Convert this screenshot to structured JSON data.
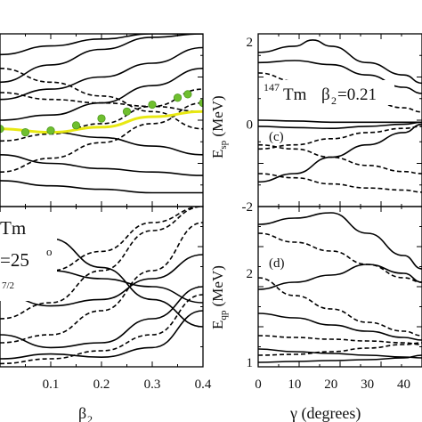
{
  "figure": {
    "annotations": {
      "nucleus_mass": "147",
      "nucleus_symbol": "Tm",
      "beta_label": "β",
      "beta_sub": "2",
      "beta_value": "=0.21",
      "panel_c": "(c)",
      "panel_d": "(d)",
      "left_tm": "Tm",
      "left_gamma": "=25",
      "left_gamma_deg": "o",
      "left_frac": "7/2"
    }
  },
  "chart_data": [
    {
      "type": "line",
      "panel": "left-top",
      "xlim": [
        0.0,
        0.4
      ],
      "series": [
        {
          "style": "solid",
          "color": "#000000",
          "x": [
            0.0,
            0.1,
            0.2,
            0.3,
            0.4
          ],
          "y": [
            0.88,
            0.93,
            0.97,
            1.0,
            1.0
          ]
        },
        {
          "style": "solid",
          "color": "#000000",
          "x": [
            0.0,
            0.1,
            0.2,
            0.3,
            0.4
          ],
          "y": [
            0.72,
            0.82,
            0.91,
            0.98,
            1.0
          ]
        },
        {
          "style": "solid",
          "color": "#000000",
          "x": [
            0.0,
            0.1,
            0.2,
            0.3,
            0.4
          ],
          "y": [
            0.62,
            0.68,
            0.75,
            0.83,
            0.92
          ]
        },
        {
          "style": "solid",
          "color": "#000000",
          "x": [
            0.0,
            0.1,
            0.2,
            0.3,
            0.4
          ],
          "y": [
            0.5,
            0.53,
            0.6,
            0.7,
            0.8
          ]
        },
        {
          "style": "solid",
          "color": "#000000",
          "x": [
            0.0,
            0.1,
            0.2,
            0.3,
            0.4
          ],
          "y": [
            0.45,
            0.43,
            0.4,
            0.35,
            0.3
          ]
        },
        {
          "style": "solid",
          "color": "#000000",
          "x": [
            0.0,
            0.1,
            0.2,
            0.3,
            0.4
          ],
          "y": [
            0.3,
            0.25,
            0.22,
            0.2,
            0.18
          ]
        },
        {
          "style": "solid",
          "color": "#000000",
          "x": [
            0.0,
            0.1,
            0.2,
            0.3,
            0.4
          ],
          "y": [
            0.15,
            0.12,
            0.1,
            0.08,
            0.08
          ]
        },
        {
          "style": "dashed",
          "color": "#000000",
          "x": [
            0.0,
            0.1,
            0.2,
            0.3,
            0.4
          ],
          "y": [
            0.8,
            0.72,
            0.64,
            0.55,
            0.45
          ]
        },
        {
          "style": "dashed",
          "color": "#000000",
          "x": [
            0.0,
            0.1,
            0.2,
            0.3,
            0.4
          ],
          "y": [
            0.66,
            0.62,
            0.6,
            0.58,
            0.55
          ]
        },
        {
          "style": "dashed",
          "color": "#000000",
          "x": [
            0.0,
            0.1,
            0.2,
            0.3,
            0.4
          ],
          "y": [
            0.38,
            0.42,
            0.48,
            0.58,
            0.68
          ]
        },
        {
          "style": "dashed",
          "color": "#000000",
          "x": [
            0.0,
            0.1,
            0.2,
            0.3,
            0.4
          ],
          "y": [
            0.2,
            0.28,
            0.37,
            0.48,
            0.6
          ]
        },
        {
          "style": "yellow",
          "color": "#e8e812",
          "x": [
            0.0,
            0.1,
            0.2,
            0.3,
            0.4
          ],
          "y": [
            0.45,
            0.43,
            0.46,
            0.52,
            0.55
          ]
        },
        {
          "style": "dots",
          "color": "#6fbf2f",
          "x": [
            0.0,
            0.05,
            0.1,
            0.15,
            0.2,
            0.25,
            0.3,
            0.35,
            0.37,
            0.4
          ],
          "y": [
            0.45,
            0.43,
            0.44,
            0.47,
            0.51,
            0.55,
            0.59,
            0.63,
            0.65,
            0.6
          ]
        }
      ]
    },
    {
      "type": "line",
      "panel": "left-bottom",
      "xlabel": "β2",
      "xlim": [
        0.0,
        0.4
      ],
      "xticks": [
        "0.1",
        "0.2",
        "0.3",
        "0.4"
      ],
      "series": [
        {
          "style": "solid",
          "color": "#000000",
          "x": [
            0.0,
            0.1,
            0.2,
            0.3,
            0.4
          ],
          "y": [
            0.92,
            0.8,
            0.62,
            0.42,
            0.25
          ]
        },
        {
          "style": "solid",
          "color": "#000000",
          "x": [
            0.0,
            0.1,
            0.2,
            0.3,
            0.4
          ],
          "y": [
            0.7,
            0.6,
            0.55,
            0.5,
            0.4
          ]
        },
        {
          "style": "solid",
          "color": "#000000",
          "x": [
            0.0,
            0.1,
            0.2,
            0.3,
            0.4
          ],
          "y": [
            0.45,
            0.38,
            0.42,
            0.55,
            0.7
          ]
        },
        {
          "style": "solid",
          "color": "#000000",
          "x": [
            0.0,
            0.1,
            0.2,
            0.3,
            0.4
          ],
          "y": [
            0.2,
            0.12,
            0.15,
            0.3,
            0.5
          ]
        },
        {
          "style": "solid",
          "color": "#000000",
          "x": [
            0.0,
            0.1,
            0.2,
            0.3,
            0.4
          ],
          "y": [
            0.05,
            0.08,
            0.06,
            0.12,
            0.35
          ]
        },
        {
          "style": "dashed",
          "color": "#000000",
          "x": [
            0.0,
            0.1,
            0.2,
            0.3,
            0.4
          ],
          "y": [
            0.3,
            0.4,
            0.6,
            0.85,
            1.0
          ]
        },
        {
          "style": "dashed",
          "color": "#000000",
          "x": [
            0.0,
            0.1,
            0.2,
            0.3,
            0.4
          ],
          "y": [
            0.55,
            0.6,
            0.72,
            0.9,
            1.0
          ]
        },
        {
          "style": "dashed",
          "color": "#000000",
          "x": [
            0.0,
            0.1,
            0.2,
            0.3,
            0.4
          ],
          "y": [
            0.15,
            0.2,
            0.35,
            0.6,
            0.9
          ]
        },
        {
          "style": "dashed",
          "color": "#000000",
          "x": [
            0.0,
            0.1,
            0.2,
            0.3,
            0.4
          ],
          "y": [
            0.02,
            0.05,
            0.1,
            0.2,
            0.45
          ]
        }
      ]
    },
    {
      "type": "line",
      "panel": "c",
      "ylabel": "Esp (MeV)",
      "ylim": [
        -2.0,
        2.2
      ],
      "yticks": [
        "-2",
        "0",
        "2"
      ],
      "xlim": [
        0,
        45
      ],
      "series": [
        {
          "style": "solid",
          "color": "#000000",
          "x": [
            0,
            10,
            15,
            20,
            30,
            40,
            45
          ],
          "y": [
            1.75,
            1.9,
            2.05,
            1.9,
            1.5,
            1.2,
            1.0
          ]
        },
        {
          "style": "solid",
          "color": "#000000",
          "x": [
            0,
            10,
            20,
            30,
            40,
            45
          ],
          "y": [
            1.5,
            1.55,
            1.45,
            1.2,
            0.9,
            0.75
          ]
        },
        {
          "style": "solid",
          "color": "#000000",
          "x": [
            0,
            10,
            20,
            30,
            40,
            45
          ],
          "y": [
            0.1,
            0.08,
            0.05,
            0.05,
            0.05,
            0.05
          ]
        },
        {
          "style": "solid",
          "color": "#000000",
          "x": [
            0,
            10,
            20,
            30,
            40,
            45
          ],
          "y": [
            -0.05,
            -0.08,
            -0.1,
            -0.05,
            0.0,
            0.05
          ]
        },
        {
          "style": "solid",
          "color": "#000000",
          "x": [
            0,
            10,
            20,
            30,
            40,
            45
          ],
          "y": [
            -1.4,
            -1.2,
            -0.8,
            -0.5,
            -0.2,
            0.0
          ]
        },
        {
          "style": "dashed",
          "color": "#000000",
          "x": [
            0,
            10,
            20,
            30,
            40,
            45
          ],
          "y": [
            -0.5,
            -0.6,
            -0.8,
            -1.0,
            -1.15,
            -1.2
          ]
        },
        {
          "style": "dashed",
          "color": "#000000",
          "x": [
            0,
            10,
            20,
            30,
            40,
            45
          ],
          "y": [
            -0.6,
            -0.5,
            -0.35,
            -0.2,
            -0.1,
            -0.05
          ]
        },
        {
          "style": "dashed",
          "color": "#000000",
          "x": [
            0,
            10,
            20,
            30,
            40,
            45
          ],
          "y": [
            -1.2,
            -1.3,
            -1.45,
            -1.55,
            -1.6,
            -1.65
          ]
        },
        {
          "style": "dashed",
          "color": "#000000",
          "x": [
            0,
            10,
            20,
            30,
            40,
            45
          ],
          "y": [
            1.25,
            1.05,
            0.85,
            0.6,
            0.4,
            0.3
          ]
        }
      ]
    },
    {
      "type": "line",
      "panel": "d",
      "xlabel": "γ (degrees)",
      "ylabel": "Eqp (MeV)",
      "xlim": [
        0,
        45
      ],
      "xticks": [
        "0",
        "10",
        "20",
        "30",
        "40"
      ],
      "ylim": [
        0.95,
        2.75
      ],
      "yticks": [
        "1",
        "2"
      ],
      "series": [
        {
          "style": "solid",
          "color": "#000000",
          "x": [
            0,
            10,
            20,
            30,
            40,
            45
          ],
          "y": [
            2.55,
            2.62,
            2.68,
            2.45,
            2.2,
            2.05
          ]
        },
        {
          "style": "solid",
          "color": "#000000",
          "x": [
            0,
            10,
            20,
            30,
            40,
            45
          ],
          "y": [
            1.82,
            1.9,
            1.98,
            2.1,
            2.0,
            1.9
          ]
        },
        {
          "style": "solid",
          "color": "#000000",
          "x": [
            0,
            10,
            20,
            30,
            40,
            45
          ],
          "y": [
            1.55,
            1.5,
            1.42,
            1.35,
            1.28,
            1.25
          ]
        },
        {
          "style": "solid",
          "color": "#000000",
          "x": [
            0,
            10,
            20,
            30,
            40,
            45
          ],
          "y": [
            1.15,
            1.12,
            1.1,
            1.08,
            1.06,
            1.05
          ]
        },
        {
          "style": "solid",
          "color": "#000000",
          "x": [
            0,
            10,
            20,
            30,
            40,
            45
          ],
          "y": [
            1.0,
            1.01,
            1.02,
            1.03,
            1.05,
            1.08
          ]
        },
        {
          "style": "dashed",
          "color": "#000000",
          "x": [
            0,
            10,
            20,
            30,
            40,
            45
          ],
          "y": [
            2.45,
            2.35,
            2.25,
            2.1,
            1.95,
            1.9
          ]
        },
        {
          "style": "dashed",
          "color": "#000000",
          "x": [
            0,
            10,
            20,
            30,
            40,
            45
          ],
          "y": [
            1.95,
            1.75,
            1.6,
            1.45,
            1.35,
            1.3
          ]
        },
        {
          "style": "dashed",
          "color": "#000000",
          "x": [
            0,
            10,
            20,
            30,
            40,
            45
          ],
          "y": [
            1.3,
            1.28,
            1.26,
            1.24,
            1.22,
            1.2
          ]
        },
        {
          "style": "dashed",
          "color": "#000000",
          "x": [
            0,
            10,
            20,
            30,
            40,
            45
          ],
          "y": [
            1.08,
            1.09,
            1.12,
            1.16,
            1.2,
            1.22
          ]
        }
      ]
    }
  ]
}
